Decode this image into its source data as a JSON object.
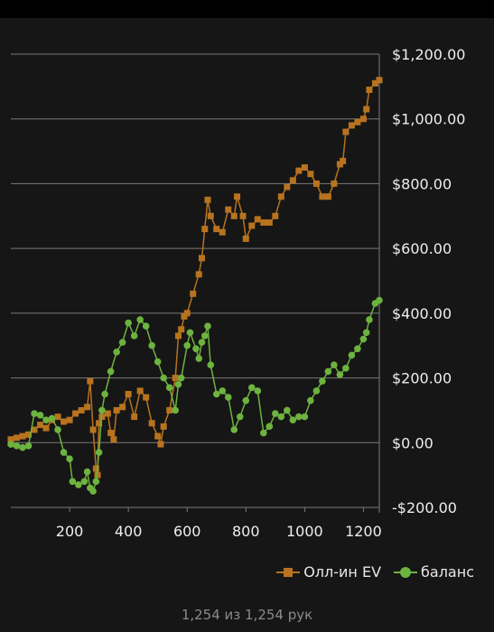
{
  "colors": {
    "ev": "#b8731f",
    "balance": "#6db33f",
    "grid": "#7a7a7a",
    "background": "#161616",
    "text": "#eeeeee"
  },
  "chart_data": {
    "type": "line",
    "xlim": [
      0,
      1254
    ],
    "ylim": [
      -200,
      1200
    ],
    "x_ticks": [
      200,
      400,
      600,
      800,
      1000,
      1200
    ],
    "x_tick_labels": [
      "200",
      "400",
      "600",
      "800",
      "1000",
      "1200"
    ],
    "y_ticks": [
      -200,
      0,
      200,
      400,
      600,
      800,
      1000,
      1200
    ],
    "y_tick_labels": [
      "-$200.00",
      "$0.00",
      "$200.00",
      "$400.00",
      "$600.00",
      "$800.00",
      "$1,000.00",
      "$1,200.00"
    ],
    "grid": true,
    "legend_position": "bottom-right",
    "series": [
      {
        "name": "Олл-ин EV",
        "marker": "square",
        "color": "#b8731f",
        "points": [
          [
            0,
            10
          ],
          [
            20,
            15
          ],
          [
            40,
            20
          ],
          [
            60,
            25
          ],
          [
            80,
            40
          ],
          [
            100,
            55
          ],
          [
            120,
            45
          ],
          [
            140,
            70
          ],
          [
            160,
            80
          ],
          [
            180,
            65
          ],
          [
            200,
            70
          ],
          [
            220,
            90
          ],
          [
            240,
            100
          ],
          [
            260,
            110
          ],
          [
            270,
            190
          ],
          [
            280,
            40
          ],
          [
            290,
            -80
          ],
          [
            295,
            -100
          ],
          [
            300,
            60
          ],
          [
            310,
            80
          ],
          [
            330,
            90
          ],
          [
            340,
            30
          ],
          [
            350,
            10
          ],
          [
            360,
            100
          ],
          [
            380,
            110
          ],
          [
            400,
            150
          ],
          [
            420,
            80
          ],
          [
            440,
            160
          ],
          [
            460,
            140
          ],
          [
            480,
            60
          ],
          [
            500,
            20
          ],
          [
            510,
            -5
          ],
          [
            520,
            50
          ],
          [
            540,
            100
          ],
          [
            560,
            200
          ],
          [
            570,
            330
          ],
          [
            580,
            350
          ],
          [
            590,
            390
          ],
          [
            600,
            400
          ],
          [
            620,
            460
          ],
          [
            640,
            520
          ],
          [
            650,
            570
          ],
          [
            660,
            660
          ],
          [
            670,
            750
          ],
          [
            680,
            700
          ],
          [
            700,
            660
          ],
          [
            720,
            650
          ],
          [
            740,
            720
          ],
          [
            760,
            700
          ],
          [
            770,
            760
          ],
          [
            790,
            700
          ],
          [
            800,
            630
          ],
          [
            820,
            670
          ],
          [
            840,
            690
          ],
          [
            860,
            680
          ],
          [
            880,
            680
          ],
          [
            900,
            700
          ],
          [
            920,
            760
          ],
          [
            940,
            790
          ],
          [
            960,
            810
          ],
          [
            980,
            840
          ],
          [
            1000,
            850
          ],
          [
            1020,
            830
          ],
          [
            1040,
            800
          ],
          [
            1060,
            760
          ],
          [
            1080,
            760
          ],
          [
            1100,
            800
          ],
          [
            1120,
            860
          ],
          [
            1130,
            870
          ],
          [
            1140,
            960
          ],
          [
            1160,
            980
          ],
          [
            1180,
            990
          ],
          [
            1200,
            1000
          ],
          [
            1210,
            1030
          ],
          [
            1220,
            1090
          ],
          [
            1240,
            1110
          ],
          [
            1254,
            1120
          ]
        ]
      },
      {
        "name": "баланс",
        "marker": "circle",
        "color": "#6db33f",
        "points": [
          [
            0,
            -5
          ],
          [
            20,
            -10
          ],
          [
            40,
            -15
          ],
          [
            60,
            -10
          ],
          [
            80,
            90
          ],
          [
            100,
            85
          ],
          [
            120,
            70
          ],
          [
            140,
            75
          ],
          [
            160,
            40
          ],
          [
            180,
            -30
          ],
          [
            200,
            -50
          ],
          [
            210,
            -120
          ],
          [
            230,
            -130
          ],
          [
            250,
            -120
          ],
          [
            260,
            -90
          ],
          [
            270,
            -140
          ],
          [
            280,
            -150
          ],
          [
            290,
            -120
          ],
          [
            300,
            -30
          ],
          [
            310,
            100
          ],
          [
            320,
            150
          ],
          [
            340,
            220
          ],
          [
            360,
            280
          ],
          [
            380,
            310
          ],
          [
            400,
            370
          ],
          [
            420,
            330
          ],
          [
            440,
            380
          ],
          [
            460,
            360
          ],
          [
            480,
            300
          ],
          [
            500,
            250
          ],
          [
            520,
            200
          ],
          [
            540,
            170
          ],
          [
            560,
            100
          ],
          [
            570,
            180
          ],
          [
            580,
            200
          ],
          [
            600,
            300
          ],
          [
            610,
            340
          ],
          [
            630,
            290
          ],
          [
            640,
            260
          ],
          [
            650,
            310
          ],
          [
            660,
            330
          ],
          [
            670,
            360
          ],
          [
            680,
            240
          ],
          [
            700,
            150
          ],
          [
            720,
            160
          ],
          [
            740,
            140
          ],
          [
            760,
            40
          ],
          [
            780,
            80
          ],
          [
            800,
            130
          ],
          [
            820,
            170
          ],
          [
            840,
            160
          ],
          [
            860,
            30
          ],
          [
            880,
            50
          ],
          [
            900,
            90
          ],
          [
            920,
            80
          ],
          [
            940,
            100
          ],
          [
            960,
            70
          ],
          [
            980,
            80
          ],
          [
            1000,
            80
          ],
          [
            1020,
            130
          ],
          [
            1040,
            160
          ],
          [
            1060,
            190
          ],
          [
            1080,
            220
          ],
          [
            1100,
            240
          ],
          [
            1120,
            210
          ],
          [
            1140,
            230
          ],
          [
            1160,
            270
          ],
          [
            1180,
            290
          ],
          [
            1200,
            320
          ],
          [
            1210,
            340
          ],
          [
            1220,
            380
          ],
          [
            1240,
            430
          ],
          [
            1254,
            440
          ]
        ]
      }
    ]
  },
  "legend": {
    "ev_label": "Олл-ин EV",
    "balance_label": "баланс"
  },
  "footer": {
    "hands_text": "1,254 из 1,254 рук"
  }
}
